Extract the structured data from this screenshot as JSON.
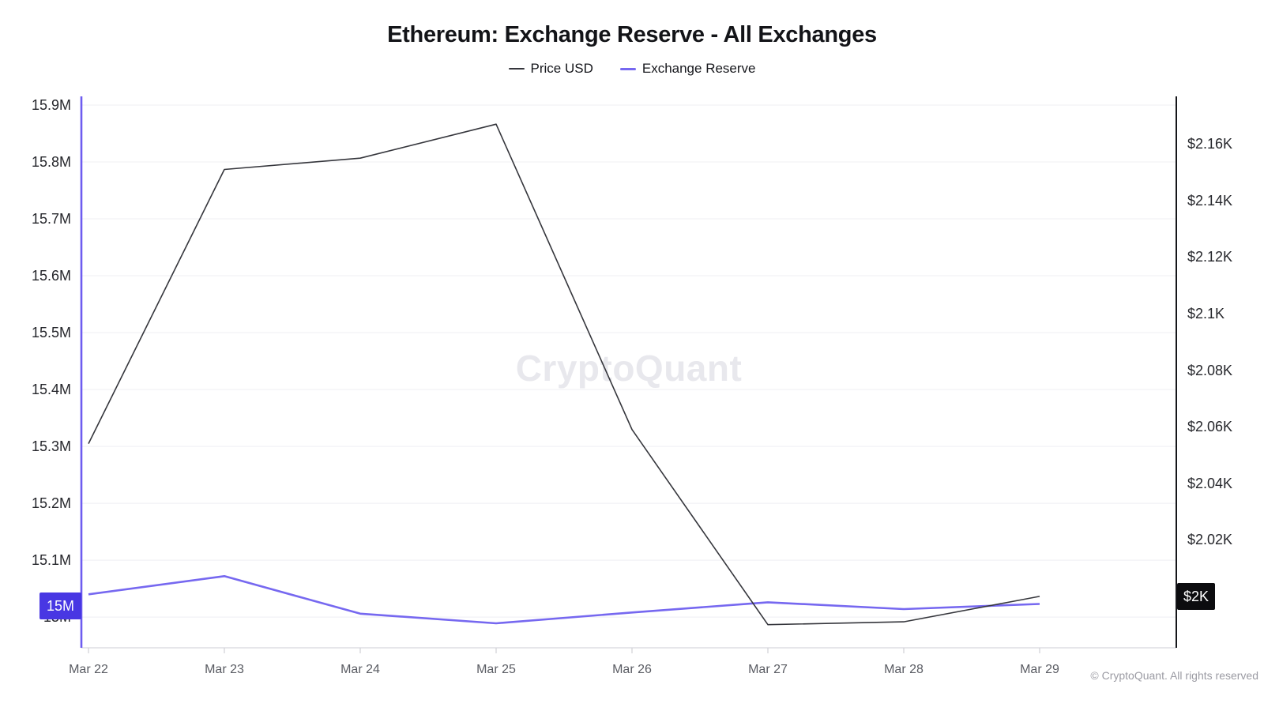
{
  "page": {
    "watermark": "CryptoQuant",
    "footer": "© CryptoQuant. All rights reserved"
  },
  "chart_data": {
    "type": "line",
    "title": "Ethereum: Exchange Reserve - All Exchanges",
    "legend_position": "top",
    "grid": true,
    "categories": [
      "Mar 22",
      "Mar 23",
      "Mar 24",
      "Mar 25",
      "Mar 26",
      "Mar 27",
      "Mar 28",
      "Mar 29"
    ],
    "series": [
      {
        "name": "Price USD",
        "axis": "right",
        "color": "#35363c",
        "unit": "USD",
        "values": [
          2054,
          2151,
          2155,
          2167,
          2059,
          1990,
          1991,
          2000
        ]
      },
      {
        "name": "Exchange Reserve",
        "axis": "left",
        "color": "#7668f0",
        "unit": "M ETH",
        "values": [
          15.04,
          15.072,
          15.006,
          14.989,
          15.008,
          15.026,
          15.014,
          15.023
        ]
      }
    ],
    "left_axis": {
      "range": [
        14.946,
        15.918
      ],
      "axis_color": "#6d5cf0",
      "ticks": [
        {
          "label": "15.9M",
          "value": 15.9
        },
        {
          "label": "15.8M",
          "value": 15.8
        },
        {
          "label": "15.7M",
          "value": 15.7
        },
        {
          "label": "15.6M",
          "value": 15.6
        },
        {
          "label": "15.5M",
          "value": 15.5
        },
        {
          "label": "15.4M",
          "value": 15.4
        },
        {
          "label": "15.3M",
          "value": 15.3
        },
        {
          "label": "15.2M",
          "value": 15.2
        },
        {
          "label": "15.1M",
          "value": 15.1
        },
        {
          "label": "15M",
          "value": 15.0
        }
      ],
      "badge": {
        "label": "15M",
        "value": 15.02,
        "color": "#4837e3"
      }
    },
    "right_axis": {
      "range": [
        1981.8,
        2177.4
      ],
      "axis_color": "#15161a",
      "ticks": [
        {
          "label": "$2.16K",
          "value": 2160
        },
        {
          "label": "$2.14K",
          "value": 2140
        },
        {
          "label": "$2.12K",
          "value": 2120
        },
        {
          "label": "$2.1K",
          "value": 2100
        },
        {
          "label": "$2.08K",
          "value": 2080
        },
        {
          "label": "$2.06K",
          "value": 2060
        },
        {
          "label": "$2.04K",
          "value": 2040
        },
        {
          "label": "$2.02K",
          "value": 2020
        },
        {
          "label": "$2K",
          "value": 2000
        }
      ],
      "badge": {
        "label": "$2K",
        "value": 2000,
        "color": "#0c0c0f"
      }
    }
  }
}
